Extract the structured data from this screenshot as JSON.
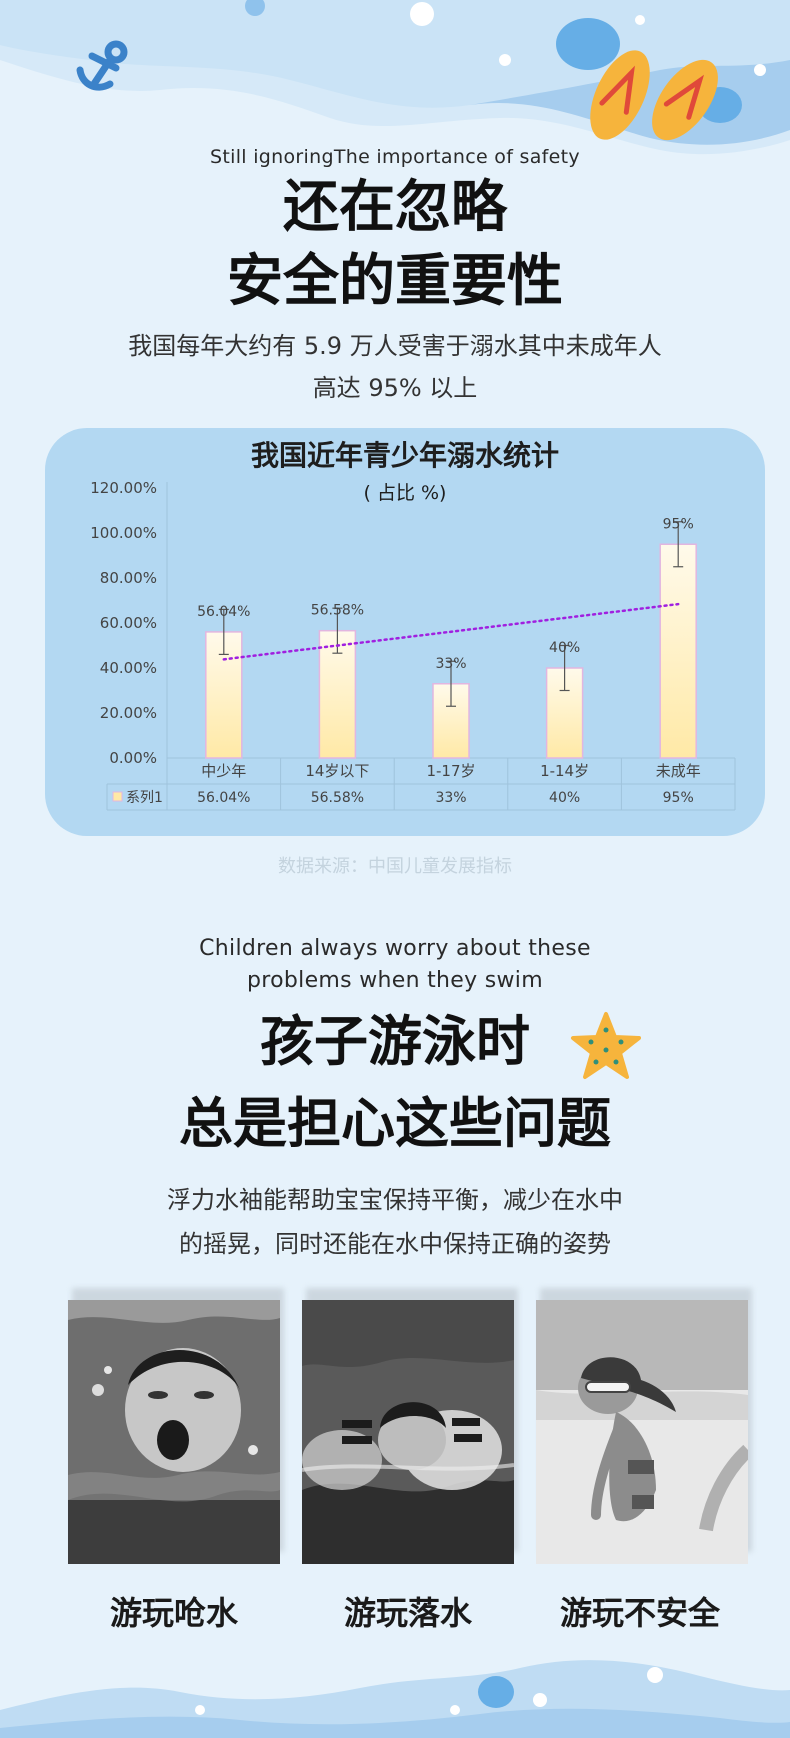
{
  "header": {
    "en_subtitle": "Still ignoringThe importance of safety",
    "title_line1": "还在忽略",
    "title_line2": "安全的重要性",
    "desc_line1": "我国每年大约有 5.9 万人受害于溺水其中未成年人",
    "desc_line2": "高达 95% 以上"
  },
  "chart": {
    "title": "我国近年青少年溺水统计",
    "subtitle": "( 占比 %)",
    "source": "数据来源：中国儿童发展指标"
  },
  "chart_data": {
    "type": "bar",
    "categories": [
      "中少年",
      "14岁以下",
      "1-17岁",
      "1-14岁",
      "未成年"
    ],
    "series": [
      {
        "name": "系列1",
        "values": [
          56.04,
          56.58,
          33,
          40,
          95
        ],
        "labels": [
          "56.04%",
          "56.58%",
          "33%",
          "40%",
          "95%"
        ]
      }
    ],
    "ylim": [
      0,
      120
    ],
    "yticks": [
      "0.00%",
      "20.00%",
      "40.00%",
      "60.00%",
      "80.00%",
      "100.00%",
      "120.00%"
    ],
    "error_bars": true,
    "trendline": "linear",
    "data_table": true,
    "colors": {
      "bar_top": "#fffaeb",
      "bar_bottom": "#ffe9a6",
      "bar_stroke": "#e2b6e0",
      "trendline": "#a020e0",
      "error": "#555555"
    }
  },
  "section2": {
    "en_line1": "Children always worry about these",
    "en_line2": "problems when they swim",
    "title_line1": "孩子游泳时",
    "title_line2": "总是担心这些问题",
    "desc_line1": "浮力水袖能帮助宝宝保持平衡，减少在水中",
    "desc_line2": "的摇晃，同时还能在水中保持正确的姿势"
  },
  "photos": [
    {
      "label": "游玩呛水",
      "icon": "choking-child-photo"
    },
    {
      "label": "游玩落水",
      "icon": "falling-in-water-photo"
    },
    {
      "label": "游玩不安全",
      "icon": "unsafe-play-photo"
    }
  ],
  "icons": [
    "anchor-icon",
    "flip-flops-icon",
    "starfish-icon"
  ],
  "colors": {
    "background": "#e6f2fb",
    "wave_light": "#bfdcf3",
    "wave_mid": "#a6cdee",
    "card": "#b3d8f2",
    "accent_blue": "#66aee6",
    "sandal": "#f6b43c"
  }
}
